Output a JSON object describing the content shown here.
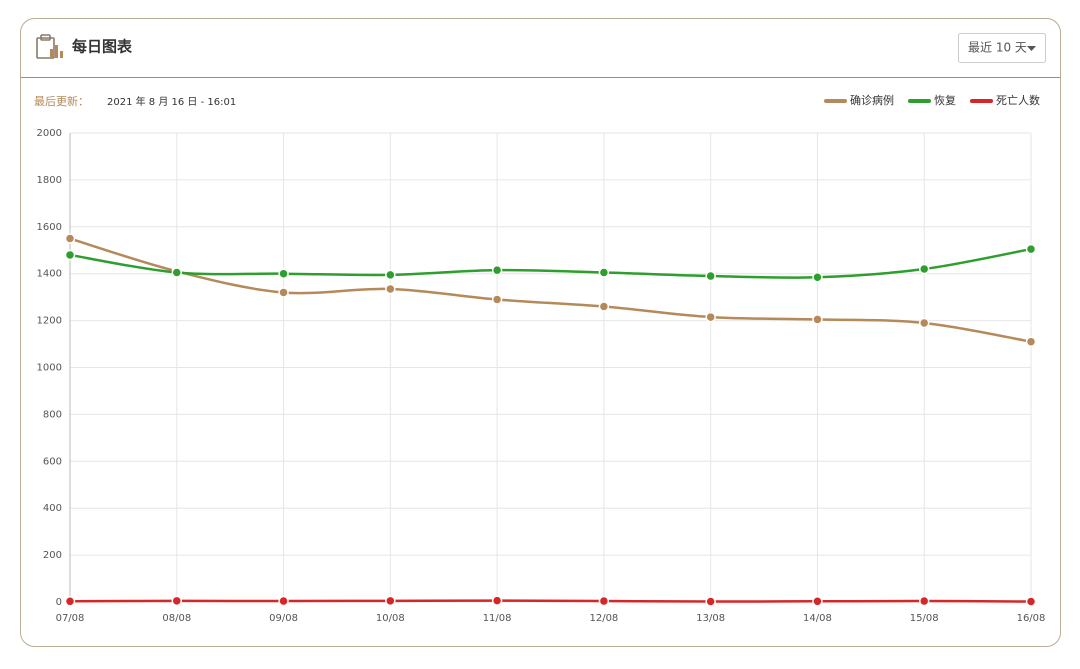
{
  "header": {
    "title": "每日图表",
    "dropdown": "最近 10 天"
  },
  "update": {
    "label": "最后更新：",
    "time": "2021 年 8 月 16 日 - 16:01"
  },
  "chart_data": {
    "type": "line",
    "categories": [
      "07/08",
      "08/08",
      "09/08",
      "10/08",
      "11/08",
      "12/08",
      "13/08",
      "14/08",
      "15/08",
      "16/08"
    ],
    "series": [
      {
        "name": "确诊病例",
        "color": "#b5895a",
        "values": [
          1550,
          1410,
          1320,
          1335,
          1290,
          1260,
          1215,
          1205,
          1190,
          1110
        ]
      },
      {
        "name": "恢复",
        "color": "#2e9e2e",
        "values": [
          1480,
          1405,
          1400,
          1395,
          1415,
          1405,
          1390,
          1385,
          1420,
          1505
        ]
      },
      {
        "name": "死亡人数",
        "color": "#d62728",
        "values": [
          3,
          5,
          4,
          5,
          6,
          4,
          2,
          3,
          4,
          2
        ]
      }
    ],
    "ylim": [
      0,
      2000
    ],
    "yticks": [
      0,
      200,
      400,
      600,
      800,
      1000,
      1200,
      1400,
      1600,
      1800,
      2000
    ],
    "grid": true,
    "legend": "top-right"
  }
}
